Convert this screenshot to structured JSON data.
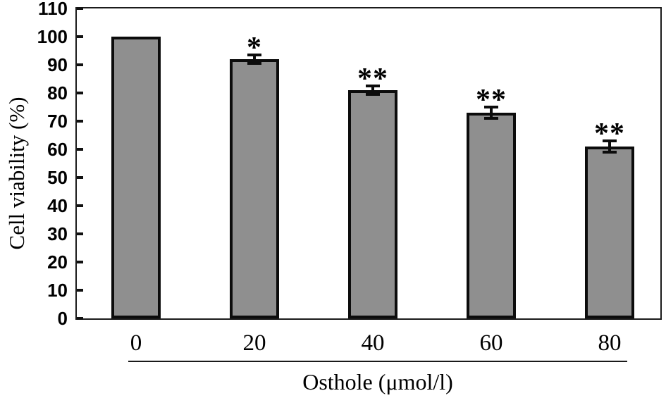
{
  "figure": {
    "background": "#ffffff",
    "bar_fill": "#8f8f8f",
    "bar_border": "#0c0c0c",
    "axis_color": "#1b1b1b",
    "text_color": "#000000"
  },
  "chart_data": {
    "type": "bar",
    "title": "",
    "xlabel": "Osthole (μmol/l)",
    "ylabel": "Cell viability (%)",
    "categories": [
      "0",
      "20",
      "40",
      "60",
      "80"
    ],
    "values": [
      100,
      92,
      81,
      73,
      61
    ],
    "error_bars": [
      0,
      1.5,
      1.5,
      2,
      2
    ],
    "significance": [
      "",
      "*",
      "**",
      "**",
      "**"
    ],
    "ylim": [
      0,
      110
    ],
    "yticks": [
      0,
      10,
      20,
      30,
      40,
      50,
      60,
      70,
      80,
      90,
      100,
      110
    ],
    "grid": false,
    "legend": null
  }
}
